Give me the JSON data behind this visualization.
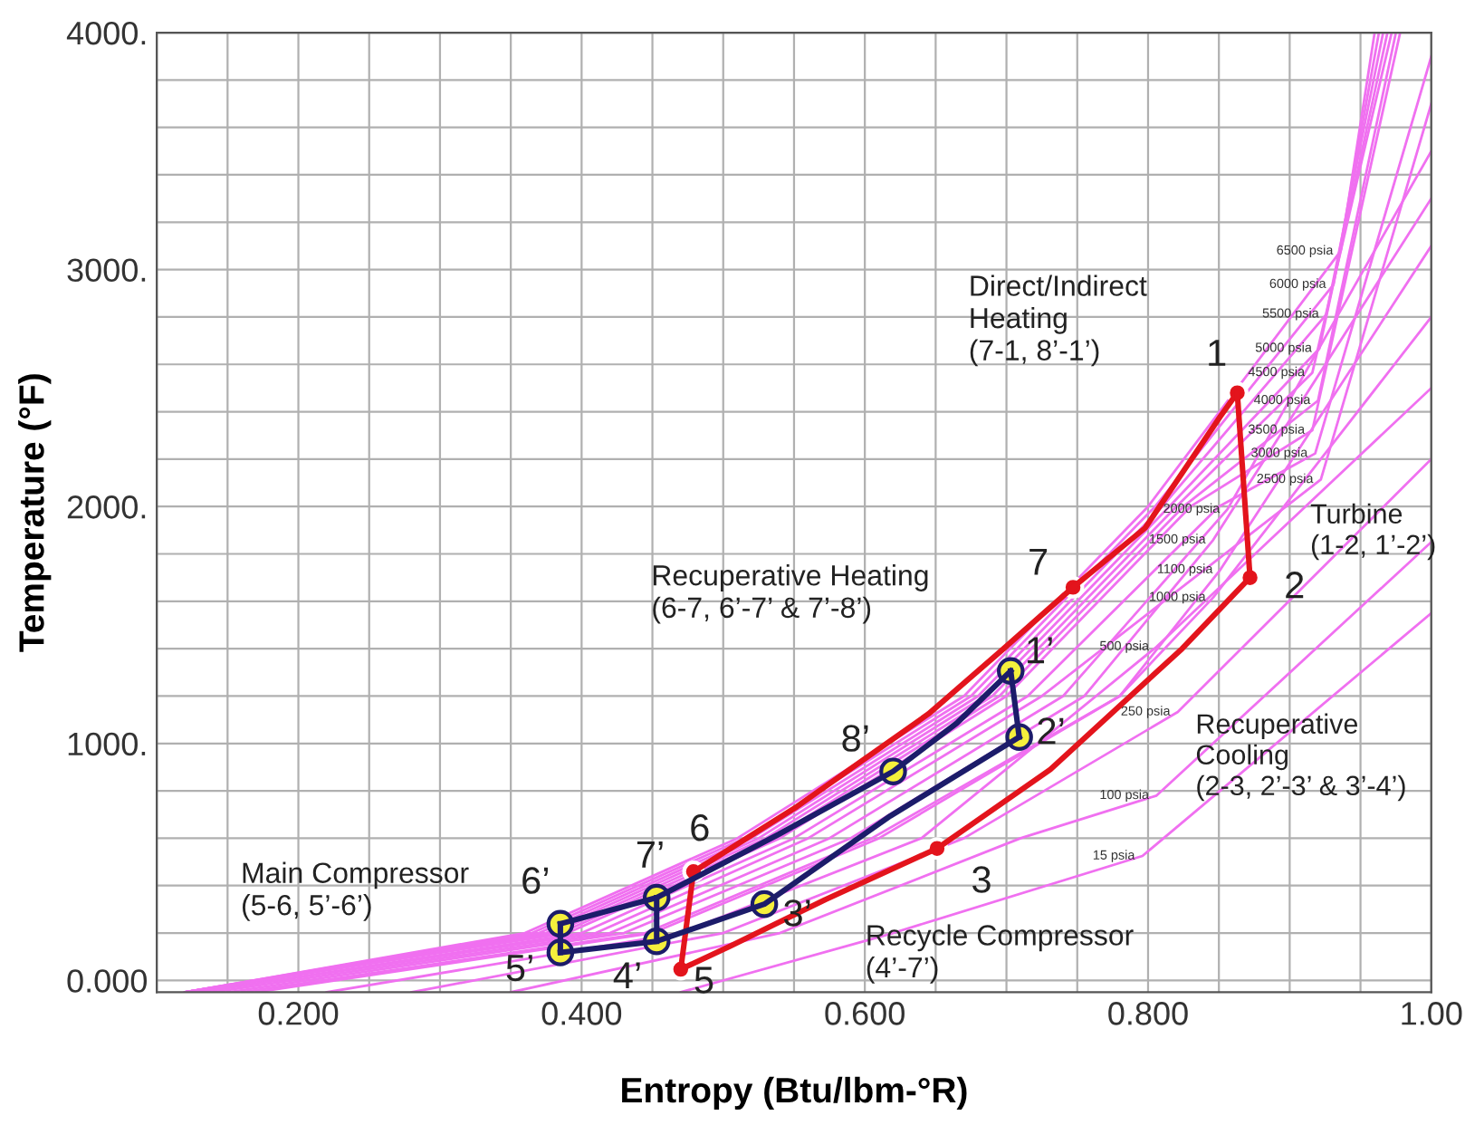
{
  "chart_data": {
    "type": "line",
    "xlabel": "Entropy (Btu/lbm-°R)",
    "ylabel": "Temperature (°F)",
    "xlim": [
      0.1,
      1.0
    ],
    "ylim": [
      -50,
      4000
    ],
    "xticks": [
      {
        "value": 0.1,
        "label": null
      },
      {
        "value": 0.15,
        "label": null
      },
      {
        "value": 0.2,
        "label": "0.200"
      },
      {
        "value": 0.25,
        "label": null
      },
      {
        "value": 0.3,
        "label": null
      },
      {
        "value": 0.35,
        "label": null
      },
      {
        "value": 0.4,
        "label": "0.400"
      },
      {
        "value": 0.45,
        "label": null
      },
      {
        "value": 0.5,
        "label": null
      },
      {
        "value": 0.55,
        "label": null
      },
      {
        "value": 0.6,
        "label": "0.600"
      },
      {
        "value": 0.65,
        "label": null
      },
      {
        "value": 0.7,
        "label": null
      },
      {
        "value": 0.75,
        "label": null
      },
      {
        "value": 0.8,
        "label": "0.800"
      },
      {
        "value": 0.85,
        "label": null
      },
      {
        "value": 0.9,
        "label": null
      },
      {
        "value": 0.95,
        "label": null
      },
      {
        "value": 1.0,
        "label": "1.00"
      }
    ],
    "yticks": [
      {
        "value": 0,
        "label": "0.000"
      },
      {
        "value": 200,
        "label": null
      },
      {
        "value": 400,
        "label": null
      },
      {
        "value": 600,
        "label": null
      },
      {
        "value": 800,
        "label": null
      },
      {
        "value": 1000,
        "label": "1000."
      },
      {
        "value": 1200,
        "label": null
      },
      {
        "value": 1400,
        "label": null
      },
      {
        "value": 1600,
        "label": null
      },
      {
        "value": 1800,
        "label": null
      },
      {
        "value": 2000,
        "label": "2000."
      },
      {
        "value": 2200,
        "label": null
      },
      {
        "value": 2400,
        "label": null
      },
      {
        "value": 2600,
        "label": null
      },
      {
        "value": 2800,
        "label": null
      },
      {
        "value": 3000,
        "label": "3000."
      },
      {
        "value": 3200,
        "label": null
      },
      {
        "value": 3400,
        "label": null
      },
      {
        "value": 3600,
        "label": null
      },
      {
        "value": 3800,
        "label": null
      },
      {
        "value": 4000,
        "label": "4000."
      }
    ],
    "grid": true,
    "legend": false,
    "series": [
      {
        "name": "6500 psia",
        "color": "#f070f0",
        "x": [
          0.12,
          0.36,
          0.51,
          0.67,
          0.8,
          0.936,
          0.96
        ],
        "values": [
          -50,
          200,
          600,
          1200,
          2000,
          3078,
          4000
        ]
      },
      {
        "name": "6000 psia",
        "color": "#f070f0",
        "x": [
          0.12,
          0.365,
          0.515,
          0.675,
          0.805,
          0.931,
          0.963
        ],
        "values": [
          -50,
          200,
          600,
          1200,
          2000,
          2937,
          4000
        ]
      },
      {
        "name": "5500 psia",
        "color": "#f070f0",
        "x": [
          0.12,
          0.37,
          0.52,
          0.68,
          0.81,
          0.926,
          0.966
        ],
        "values": [
          -50,
          200,
          600,
          1200,
          2000,
          2812,
          4000
        ]
      },
      {
        "name": "5000 psia",
        "color": "#f070f0",
        "x": [
          0.12,
          0.375,
          0.525,
          0.685,
          0.815,
          0.921,
          0.969
        ],
        "values": [
          -50,
          200,
          600,
          1200,
          2000,
          2667,
          4000
        ]
      },
      {
        "name": "4500 psia",
        "color": "#f070f0",
        "x": [
          0.12,
          0.38,
          0.53,
          0.69,
          0.82,
          0.916,
          0.972
        ],
        "values": [
          -50,
          200,
          600,
          1200,
          2000,
          2565,
          4000
        ]
      },
      {
        "name": "4000 psia",
        "color": "#f070f0",
        "x": [
          0.12,
          0.385,
          0.535,
          0.695,
          0.825,
          0.92,
          0.975
        ],
        "values": [
          -50,
          200,
          600,
          1200,
          2000,
          2447,
          4000
        ]
      },
      {
        "name": "3500 psia",
        "color": "#f070f0",
        "x": [
          0.12,
          0.39,
          0.54,
          0.7,
          0.83,
          0.916,
          0.978
        ],
        "values": [
          -50,
          200,
          600,
          1200,
          2000,
          2322,
          4000
        ]
      },
      {
        "name": "3000 psia",
        "color": "#f070f0",
        "x": [
          0.13,
          0.4,
          0.55,
          0.715,
          0.85,
          0.918,
          1.0
        ],
        "values": [
          -50,
          200,
          600,
          1200,
          2000,
          2224,
          3900
        ]
      },
      {
        "name": "2500 psia",
        "color": "#f070f0",
        "x": [
          0.13,
          0.41,
          0.56,
          0.725,
          0.922,
          1.0
        ],
        "values": [
          -50,
          200,
          600,
          1200,
          2114,
          3700
        ]
      },
      {
        "name": "2000 psia",
        "color": "#f070f0",
        "x": [
          0.14,
          0.42,
          0.575,
          0.74,
          0.856,
          1.0
        ],
        "values": [
          -50,
          200,
          600,
          1200,
          1988,
          3500
        ]
      },
      {
        "name": "1500 psia",
        "color": "#f070f0",
        "x": [
          0.15,
          0.43,
          0.59,
          0.755,
          0.846,
          1.0
        ],
        "values": [
          -50,
          200,
          600,
          1200,
          1859,
          3300
        ]
      },
      {
        "name": "1100 psia",
        "color": "#f070f0",
        "x": [
          0.16,
          0.445,
          0.605,
          0.78,
          0.851,
          1.0
        ],
        "values": [
          -50,
          200,
          600,
          1200,
          1733,
          3100
        ]
      },
      {
        "name": "1000 psia",
        "color": "#f070f0",
        "x": [
          0.17,
          0.45,
          0.61,
          0.78,
          0.846,
          1.0
        ],
        "values": [
          -50,
          200,
          600,
          1200,
          1616,
          2800
        ]
      },
      {
        "name": "500 psia",
        "color": "#f070f0",
        "x": [
          0.22,
          0.47,
          0.64,
          0.806,
          1.0
        ],
        "values": [
          -50,
          200,
          600,
          1408,
          2500
        ]
      },
      {
        "name": "250 psia",
        "color": "#f070f0",
        "x": [
          0.28,
          0.5,
          0.67,
          0.821,
          1.0
        ],
        "values": [
          -50,
          200,
          600,
          1133,
          2200
        ]
      },
      {
        "name": "100 psia",
        "color": "#f070f0",
        "x": [
          0.35,
          0.54,
          0.71,
          0.806,
          1.0
        ],
        "values": [
          -50,
          200,
          600,
          780,
          1850
        ]
      },
      {
        "name": "15 psia",
        "color": "#f070f0",
        "x": [
          0.47,
          0.62,
          0.796,
          1.0
        ],
        "values": [
          -50,
          200,
          525,
          1550
        ]
      },
      {
        "color": "#e3141c",
        "marker": "none",
        "x": [
          0.47,
          0.479,
          0.552,
          0.645,
          0.698,
          0.747,
          0.798,
          0.851,
          0.863
        ],
        "values": [
          47,
          459,
          733,
          1125,
          1400,
          1659,
          1910,
          2380,
          2480
        ]
      },
      {
        "color": "#e3141c",
        "marker": "none",
        "x": [
          0.863,
          0.872
        ],
        "values": [
          2480,
          1700
        ]
      },
      {
        "color": "#e3141c",
        "marker": "none",
        "x": [
          0.47,
          0.505,
          0.572,
          0.651,
          0.731,
          0.824,
          0.872
        ],
        "values": [
          47,
          145,
          341,
          557,
          890,
          1400,
          1700
        ]
      },
      {
        "color": "#1c1c6a",
        "marker": "none",
        "x": [
          0.703,
          0.709
        ],
        "values": [
          1306,
          1027
        ]
      },
      {
        "color": "#1c1c6a",
        "marker": "none",
        "x": [
          0.385,
          0.453,
          0.529,
          0.618,
          0.709
        ],
        "values": [
          118,
          165,
          322,
          694,
          1027
        ]
      },
      {
        "color": "#1c1c6a",
        "marker": "none",
        "x": [
          0.385,
          0.453,
          0.539,
          0.62,
          0.665,
          0.703
        ],
        "values": [
          239,
          349,
          616,
          882,
          1086,
          1306
        ]
      },
      {
        "color": "#1c1c6a",
        "marker": "none",
        "x": [
          0.385,
          0.385
        ],
        "values": [
          118,
          239
        ]
      },
      {
        "color": "#1c1c6a",
        "marker": "none",
        "x": [
          0.453,
          0.453
        ],
        "values": [
          165,
          349
        ]
      },
      {
        "type": "scatter",
        "color": "#e3141c",
        "marker": "circle",
        "x": [
          0.863,
          0.872,
          0.651,
          0.47,
          0.479,
          0.747
        ],
        "values": [
          2480,
          1700,
          557,
          47,
          459,
          1659
        ]
      },
      {
        "type": "scatter",
        "color": "#f5ef3c",
        "marker": "circle",
        "x": [
          0.703,
          0.709,
          0.529,
          0.453,
          0.385,
          0.385,
          0.453,
          0.62
        ],
        "values": [
          1306,
          1027,
          322,
          165,
          118,
          239,
          349,
          882
        ]
      }
    ],
    "annotations": [
      "Direct/Indirect\nHeating\n(7-1, 8’-1’)",
      "Turbine\n(1-2, 1’-2’)",
      "Recuperative Heating\n(6-7, 6’-7’ & 7’-8’)",
      "Recuperative\nCooling\n(2-3, 2’-3’ & 3’-4’)",
      "Main Compressor\n(5-6, 5’-6’)",
      "Recycle Compressor\n(4’-7’)",
      {
        "text": "1",
        "x": 0.863,
        "y": 2480
      },
      {
        "text": "2",
        "x": 0.872,
        "y": 1700
      },
      {
        "text": "3",
        "x": 0.651,
        "y": 557
      },
      {
        "text": "5",
        "x": 0.47,
        "y": 47
      },
      {
        "text": "6",
        "x": 0.479,
        "y": 459
      },
      {
        "text": "7",
        "x": 0.747,
        "y": 1659
      },
      {
        "text": "1’",
        "x": 0.703,
        "y": 1306
      },
      {
        "text": "2’",
        "x": 0.709,
        "y": 1027
      },
      {
        "text": "3’",
        "x": 0.529,
        "y": 322
      },
      {
        "text": "4’",
        "x": 0.453,
        "y": 165
      },
      {
        "text": "5’",
        "x": 0.385,
        "y": 118
      },
      {
        "text": "6’",
        "x": 0.385,
        "y": 239
      },
      {
        "text": "7’",
        "x": 0.453,
        "y": 349
      },
      {
        "text": "8’",
        "x": 0.62,
        "y": 882
      }
    ]
  }
}
